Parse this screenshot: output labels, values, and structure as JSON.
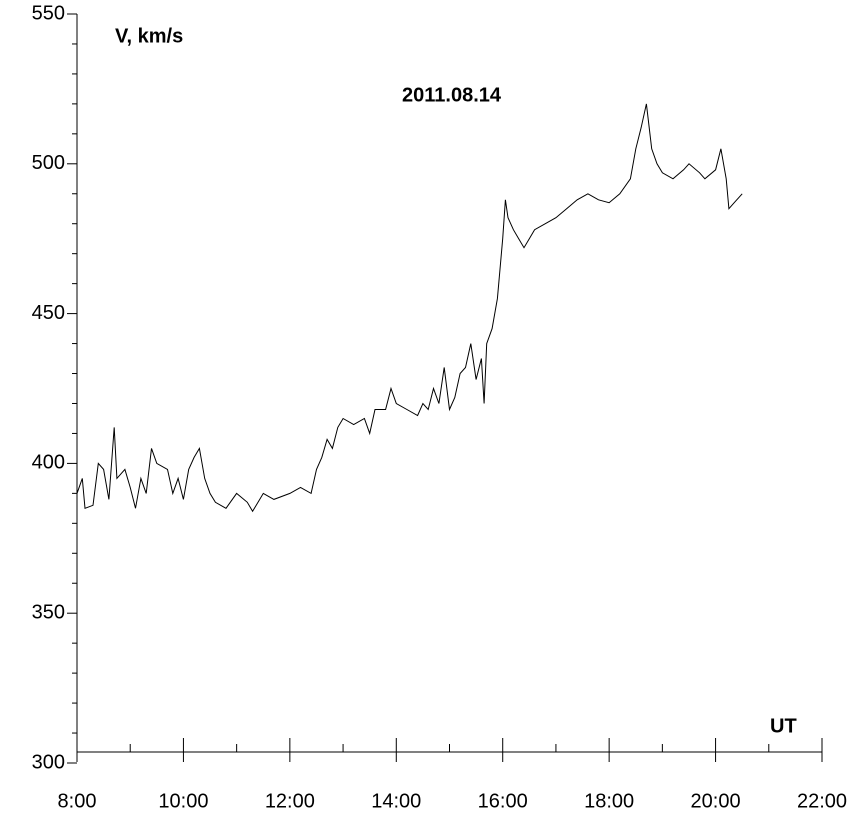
{
  "chart_data": {
    "type": "line",
    "title": "2011.08.14",
    "y_label": "V, km/s",
    "x_label": "UT",
    "xlim": [
      8,
      22
    ],
    "xticks": [
      {
        "value": 8,
        "label": "8:00"
      },
      {
        "value": 10,
        "label": "10:00"
      },
      {
        "value": 12,
        "label": "12:00"
      },
      {
        "value": 14,
        "label": "14:00"
      },
      {
        "value": 16,
        "label": "16:00"
      },
      {
        "value": 18,
        "label": "18:00"
      },
      {
        "value": 20,
        "label": "20:00"
      },
      {
        "value": 22,
        "label": "22:00"
      }
    ],
    "ylim": [
      300,
      550
    ],
    "yticks": [
      300,
      350,
      400,
      450,
      500,
      550
    ],
    "color": "#000000",
    "x": [
      8.0,
      8.1,
      8.15,
      8.3,
      8.4,
      8.5,
      8.6,
      8.7,
      8.75,
      8.9,
      9.0,
      9.1,
      9.2,
      9.3,
      9.4,
      9.5,
      9.7,
      9.8,
      9.9,
      10.0,
      10.1,
      10.2,
      10.3,
      10.4,
      10.5,
      10.6,
      10.8,
      11.0,
      11.2,
      11.3,
      11.5,
      11.7,
      12.0,
      12.2,
      12.4,
      12.5,
      12.6,
      12.7,
      12.8,
      12.9,
      13.0,
      13.2,
      13.4,
      13.5,
      13.6,
      13.8,
      13.9,
      14.0,
      14.2,
      14.4,
      14.5,
      14.6,
      14.7,
      14.8,
      14.9,
      15.0,
      15.1,
      15.2,
      15.3,
      15.4,
      15.5,
      15.6,
      15.65,
      15.7,
      15.8,
      15.9,
      16.0,
      16.05,
      16.1,
      16.2,
      16.3,
      16.4,
      16.5,
      16.6,
      16.8,
      17.0,
      17.2,
      17.4,
      17.6,
      17.8,
      18.0,
      18.2,
      18.4,
      18.5,
      18.6,
      18.7,
      18.8,
      18.9,
      19.0,
      19.2,
      19.4,
      19.5,
      19.7,
      19.8,
      20.0,
      20.1,
      20.2,
      20.25,
      20.35,
      20.5
    ],
    "values": [
      390,
      395,
      385,
      386,
      400,
      398,
      388,
      412,
      395,
      398,
      392,
      385,
      395,
      390,
      405,
      400,
      398,
      390,
      395,
      388,
      398,
      402,
      405,
      395,
      390,
      387,
      385,
      390,
      387,
      384,
      390,
      388,
      390,
      392,
      390,
      398,
      402,
      408,
      405,
      412,
      415,
      413,
      415,
      410,
      418,
      418,
      425,
      420,
      418,
      416,
      420,
      418,
      425,
      420,
      432,
      418,
      422,
      430,
      432,
      440,
      428,
      435,
      420,
      440,
      445,
      455,
      475,
      488,
      482,
      478,
      475,
      472,
      475,
      478,
      480,
      482,
      485,
      488,
      490,
      488,
      487,
      490,
      495,
      505,
      512,
      520,
      505,
      500,
      497,
      495,
      498,
      500,
      497,
      495,
      498,
      505,
      495,
      485,
      487,
      490
    ]
  }
}
